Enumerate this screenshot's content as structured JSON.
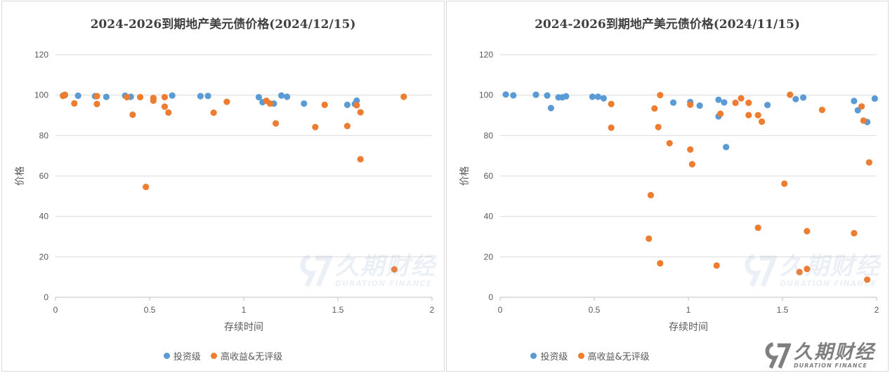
{
  "colors": {
    "investment_grade": "#5b9bd5",
    "high_yield": "#ed7d31",
    "grid": "#d9d9d9",
    "axis": "#bfbfbf"
  },
  "legend": {
    "investment_grade": "投资级",
    "high_yield": "高收益&无评级"
  },
  "watermark": {
    "name": "久期财经",
    "english": "DURATION FINANCE"
  },
  "chart_data": [
    {
      "type": "scatter",
      "title": "2024-2026到期地产美元债价格(2024/12/15)",
      "xlabel": "存续时间",
      "ylabel": "价格",
      "xlim": [
        0,
        2
      ],
      "ylim": [
        0,
        120
      ],
      "xticks": [
        "0",
        "0.5",
        "1",
        "1.5",
        "2"
      ],
      "yticks": [
        "0",
        "20",
        "40",
        "60",
        "80",
        "100",
        "120"
      ],
      "grid": true,
      "legend_position": "bottom",
      "series": [
        {
          "name": "投资级",
          "points": [
            [
              0.04,
              99.8
            ],
            [
              0.05,
              100.0
            ],
            [
              0.12,
              99.7
            ],
            [
              0.21,
              99.5
            ],
            [
              0.27,
              99.1
            ],
            [
              0.37,
              99.7
            ],
            [
              0.4,
              99.2
            ],
            [
              0.62,
              99.8
            ],
            [
              0.77,
              99.5
            ],
            [
              0.81,
              99.6
            ],
            [
              1.08,
              99.0
            ],
            [
              1.1,
              96.5
            ],
            [
              1.16,
              95.8
            ],
            [
              1.2,
              99.8
            ],
            [
              1.23,
              99.2
            ],
            [
              1.32,
              95.8
            ],
            [
              1.55,
              95.2
            ],
            [
              1.59,
              95.6
            ],
            [
              1.6,
              97.3
            ]
          ]
        },
        {
          "name": "高收益&无评级",
          "points": [
            [
              0.04,
              99.6
            ],
            [
              0.05,
              100.2
            ],
            [
              0.1,
              95.9
            ],
            [
              0.22,
              99.5
            ],
            [
              0.22,
              95.6
            ],
            [
              0.38,
              99.0
            ],
            [
              0.41,
              90.3
            ],
            [
              0.45,
              99.0
            ],
            [
              0.48,
              54.6
            ],
            [
              0.52,
              98.6
            ],
            [
              0.52,
              97.3
            ],
            [
              0.58,
              99.0
            ],
            [
              0.58,
              94.3
            ],
            [
              0.6,
              91.4
            ],
            [
              0.84,
              91.3
            ],
            [
              0.91,
              96.7
            ],
            [
              1.12,
              97.2
            ],
            [
              1.14,
              95.8
            ],
            [
              1.17,
              86.0
            ],
            [
              1.38,
              84.2
            ],
            [
              1.43,
              95.2
            ],
            [
              1.55,
              84.7
            ],
            [
              1.6,
              95.0
            ],
            [
              1.62,
              91.5
            ],
            [
              1.62,
              68.3
            ],
            [
              1.8,
              13.8
            ],
            [
              1.85,
              99.2
            ]
          ]
        }
      ]
    },
    {
      "type": "scatter",
      "title": "2024-2026到期地产美元债价格(2024/11/15)",
      "xlabel": "存续时间",
      "ylabel": "价格",
      "xlim": [
        0,
        2
      ],
      "ylim": [
        0,
        120
      ],
      "xticks": [
        "0",
        "0.5",
        "1",
        "1.5",
        "2"
      ],
      "yticks": [
        "0",
        "20",
        "40",
        "60",
        "80",
        "100",
        "120"
      ],
      "grid": true,
      "legend_position": "bottom",
      "series": [
        {
          "name": "投资级",
          "points": [
            [
              0.03,
              100.3
            ],
            [
              0.07,
              99.9
            ],
            [
              0.19,
              100.2
            ],
            [
              0.25,
              99.8
            ],
            [
              0.27,
              93.6
            ],
            [
              0.31,
              98.9
            ],
            [
              0.33,
              98.9
            ],
            [
              0.35,
              99.4
            ],
            [
              0.49,
              99.2
            ],
            [
              0.52,
              99.2
            ],
            [
              0.55,
              98.4
            ],
            [
              0.92,
              96.3
            ],
            [
              1.01,
              96.6
            ],
            [
              1.06,
              94.8
            ],
            [
              1.16,
              97.7
            ],
            [
              1.16,
              89.5
            ],
            [
              1.19,
              96.4
            ],
            [
              1.2,
              74.3
            ],
            [
              1.42,
              95.1
            ],
            [
              1.57,
              98.0
            ],
            [
              1.61,
              98.8
            ],
            [
              1.88,
              97.1
            ],
            [
              1.9,
              92.5
            ],
            [
              1.95,
              86.7
            ],
            [
              1.99,
              98.3
            ]
          ]
        },
        {
          "name": "高收益&无评级",
          "points": [
            [
              0.59,
              95.6
            ],
            [
              0.59,
              83.9
            ],
            [
              0.79,
              29.0
            ],
            [
              0.8,
              50.5
            ],
            [
              0.82,
              93.4
            ],
            [
              0.84,
              84.2
            ],
            [
              0.85,
              100.0
            ],
            [
              0.85,
              16.8
            ],
            [
              0.9,
              76.2
            ],
            [
              1.01,
              95.3
            ],
            [
              1.01,
              73.1
            ],
            [
              1.02,
              65.8
            ],
            [
              1.15,
              15.7
            ],
            [
              1.17,
              90.8
            ],
            [
              1.25,
              96.2
            ],
            [
              1.28,
              98.4
            ],
            [
              1.32,
              96.2
            ],
            [
              1.32,
              90.1
            ],
            [
              1.37,
              90.1
            ],
            [
              1.37,
              34.4
            ],
            [
              1.39,
              86.9
            ],
            [
              1.51,
              56.2
            ],
            [
              1.54,
              100.2
            ],
            [
              1.59,
              12.5
            ],
            [
              1.63,
              14.0
            ],
            [
              1.63,
              32.7
            ],
            [
              1.71,
              92.7
            ],
            [
              1.88,
              31.7
            ],
            [
              1.92,
              94.4
            ],
            [
              1.93,
              87.4
            ],
            [
              1.95,
              8.7
            ],
            [
              1.96,
              66.7
            ]
          ]
        }
      ]
    }
  ]
}
